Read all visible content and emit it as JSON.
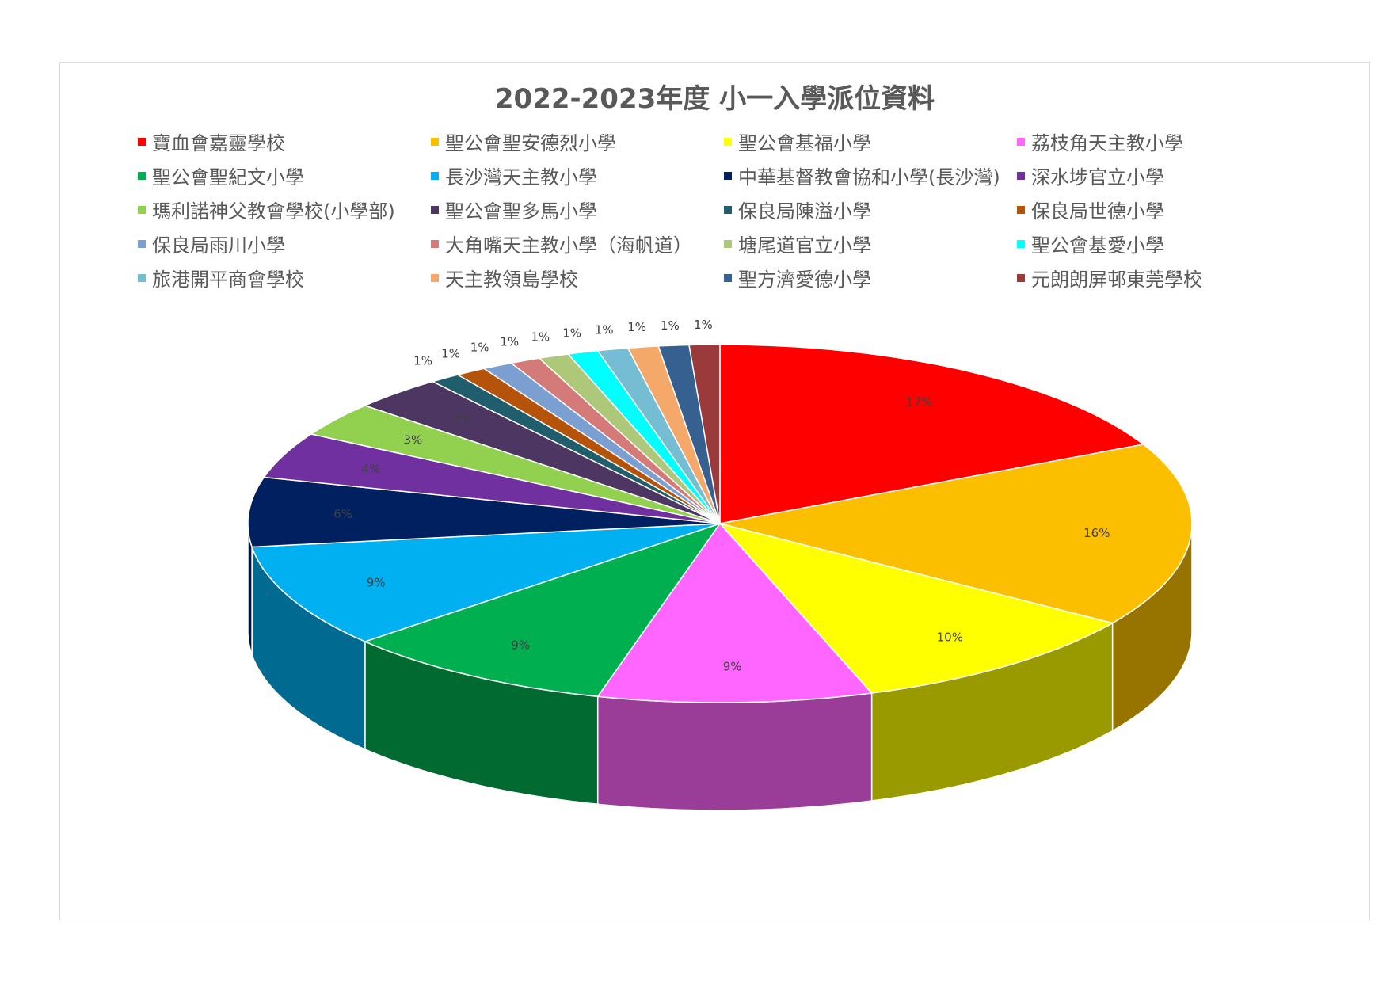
{
  "chart_data": {
    "type": "pie",
    "title": "2022-2023年度 小一入學派位資料",
    "legend_position": "top",
    "categories": [
      "寶血會嘉靈學校",
      "聖公會聖安德烈小學",
      "聖公會基福小學",
      "荔枝角天主教小學",
      "聖公會聖紀文小學",
      "長沙灣天主教小學",
      "中華基督教會協和小學(長沙灣)",
      "深水埗官立小學",
      "瑪利諾神父教會學校(小學部)",
      "聖公會聖多馬小學",
      "保良局陳溢小學",
      "保良局世德小學",
      "保良局雨川小學",
      "大角嘴天主教小學（海帆道）",
      "塘尾道官立小學",
      "聖公會基愛小學",
      "旅港開平商會學校",
      "天主教領島學校",
      "聖方濟愛德小學",
      "元朗朗屏邨東莞學校"
    ],
    "values": [
      17,
      16,
      10,
      9,
      9,
      9,
      6,
      4,
      3,
      3,
      1,
      1,
      1,
      1,
      1,
      1,
      1,
      1,
      1,
      1
    ],
    "value_labels": [
      "17%",
      "16%",
      "10%",
      "9%",
      "9%",
      "9%",
      "6%",
      "4%",
      "3%",
      "3%",
      "1%",
      "1%",
      "1%",
      "1%",
      "1%",
      "1%",
      "1%",
      "1%",
      "1%",
      "1%"
    ],
    "colors": [
      "#ff0000",
      "#fbbf00",
      "#ffff00",
      "#ff66ff",
      "#00b050",
      "#00b0f0",
      "#002060",
      "#7030a0",
      "#92d050",
      "#4d3662",
      "#215e6d",
      "#b45309",
      "#7a9fd0",
      "#d47a78",
      "#aec87a",
      "#00ffff",
      "#74bdd2",
      "#f4a96b",
      "#35608f",
      "#9b3a3a"
    ]
  }
}
